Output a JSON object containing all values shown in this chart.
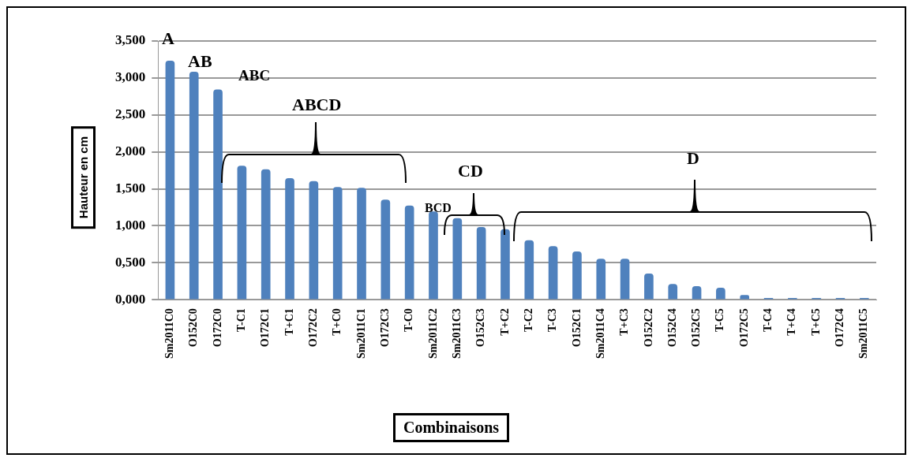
{
  "chart_data": {
    "type": "bar",
    "xlabel": "Combinaisons",
    "ylabel": "Hauteur en cm",
    "categories": [
      "Sm2011C0",
      "O152C0",
      "O172C0",
      "T-C1",
      "O172C1",
      "T+C1",
      "O172C2",
      "T+C0",
      "Sm2011C1",
      "O172C3",
      "T-C0",
      "Sm2011C2",
      "Sm2011C3",
      "O152C3",
      "T+C2",
      "T-C2",
      "T-C3",
      "O152C1",
      "Sm2011C4",
      "T+C3",
      "O152C2",
      "O152C4",
      "O152C5",
      "T-C5",
      "O172C5",
      "T-C4",
      "T+C4",
      "T+C5",
      "O172C4",
      "Sm2011C5"
    ],
    "values": [
      3.23,
      3.08,
      2.84,
      1.81,
      1.76,
      1.64,
      1.6,
      1.52,
      1.51,
      1.35,
      1.27,
      1.19,
      1.1,
      0.98,
      0.95,
      0.8,
      0.72,
      0.65,
      0.55,
      0.55,
      0.35,
      0.21,
      0.18,
      0.16,
      0.06,
      0.02,
      0.02,
      0.02,
      0.02,
      0.02
    ],
    "color": "#4f81bd",
    "ylim": [
      0,
      3.5
    ],
    "yticks": [
      {
        "value": 0,
        "label": "0,000"
      },
      {
        "value": 0.5,
        "label": "0,500"
      },
      {
        "value": 1,
        "label": "1,000"
      },
      {
        "value": 1.5,
        "label": "1,500"
      },
      {
        "value": 2,
        "label": "2,000"
      },
      {
        "value": 2.5,
        "label": "2,500"
      },
      {
        "value": 3,
        "label": "3,000"
      },
      {
        "value": 3.5,
        "label": "3,500"
      }
    ],
    "grid": "y",
    "legend": false,
    "annotations": [
      "A",
      "AB",
      "ABC",
      "ABCD",
      "BCD",
      "CD",
      "D"
    ]
  }
}
